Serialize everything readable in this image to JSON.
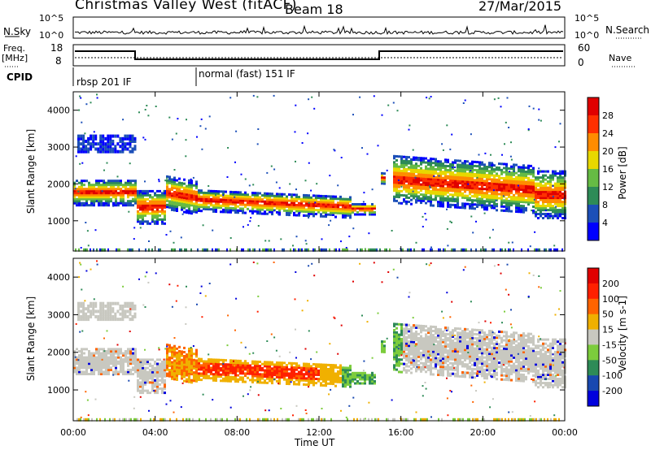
{
  "header": {
    "title": "Christmas Valley West (fitACF)",
    "beam": "Beam 18",
    "date": "27/Mar/2015"
  },
  "nsky_panel": {
    "label_left": "N.Sky",
    "label_right": "N.Search",
    "y_ticks": [
      "10^5",
      "10^0"
    ]
  },
  "freq_panel": {
    "label_left": "Freq.",
    "label_left_units": "[MHz]",
    "label_right": "Nave",
    "left_ticks": [
      "18",
      "8"
    ],
    "right_ticks": [
      "60",
      "0"
    ]
  },
  "cpid": {
    "label": "CPID",
    "modes": [
      "rbsp 201 IF",
      "normal (fast) 151 IF"
    ]
  },
  "chart_data": [
    {
      "type": "heatmap",
      "name": "power",
      "ylabel": "Slant Range [km]",
      "yticks": [
        1000,
        2000,
        3000,
        4000
      ],
      "colorbar_label": "Power [dB]",
      "colorbar_ticks": [
        4,
        8,
        12,
        16,
        20,
        24,
        28
      ],
      "colors": [
        "#0000ff",
        "#1c4fb8",
        "#2e8b57",
        "#66bb44",
        "#e8d800",
        "#ff8c00",
        "#ff3000",
        "#e00000"
      ]
    },
    {
      "type": "heatmap",
      "name": "velocity",
      "ylabel": "Slant Range [km]",
      "yticks": [
        1000,
        2000,
        3000,
        4000
      ],
      "colorbar_label": "Velocity [m s-1]",
      "colorbar_ticks": [
        200,
        100,
        50,
        15,
        -15,
        -50,
        -100,
        -200
      ],
      "colors": [
        "#0000dd",
        "#1848b0",
        "#2e8b57",
        "#7ccc3c",
        "#c8c8c0",
        "#f0b000",
        "#ff6400",
        "#ff2000",
        "#e00000"
      ]
    }
  ],
  "xaxis": {
    "label": "Time UT",
    "ticks": [
      "00:00",
      "04:00",
      "08:00",
      "12:00",
      "16:00",
      "20:00",
      "00:00"
    ]
  },
  "colors": {
    "gray_scatter": "#c8c8c0",
    "noise_line": "#000000"
  }
}
